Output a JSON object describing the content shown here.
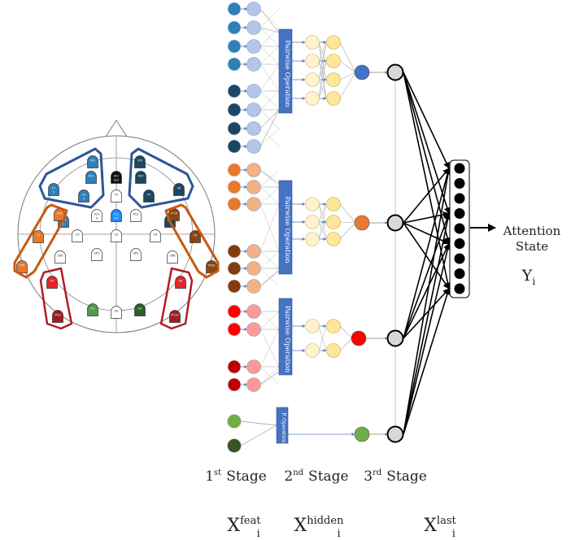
{
  "eeg": {
    "electrodes": [
      {
        "label": "F7",
        "sub": "3",
        "color": "#2f7fb8"
      },
      {
        "label": "F3",
        "sub": "4",
        "color": "#2f7fb8"
      },
      {
        "label": "FC5",
        "sub": "5",
        "color": "#2f7fb8"
      },
      {
        "label": "FP1",
        "sub": "",
        "color": "#2f7fb8"
      },
      {
        "label": "AF3",
        "sub": "",
        "color": "#2f7fb8"
      },
      {
        "label": "FP2",
        "sub": "",
        "color": "#1c4662"
      },
      {
        "label": "AF4",
        "sub": "",
        "color": "#1c4662"
      },
      {
        "label": "F4",
        "sub": "",
        "color": "#1c4662"
      },
      {
        "label": "F8",
        "sub": "",
        "color": "#1c4662"
      },
      {
        "label": "FC6",
        "sub": "",
        "color": "#1c4662"
      },
      {
        "label": "AFz",
        "sub": "Gnd",
        "color": "#111111"
      },
      {
        "label": "Fz",
        "sub": "",
        "color": "#ffffff"
      },
      {
        "label": "FT9",
        "sub": "",
        "color": "#e8782a"
      },
      {
        "label": "T7",
        "sub": "",
        "color": "#e8782a"
      },
      {
        "label": "TP9",
        "sub": "",
        "color": "#e8782a"
      },
      {
        "label": "FT10",
        "sub": "",
        "color": "#8a4512"
      },
      {
        "label": "T8",
        "sub": "",
        "color": "#8a4512"
      },
      {
        "label": "TP10",
        "sub": "",
        "color": "#8a4512"
      },
      {
        "label": "FC1",
        "sub": "9",
        "color": "#ffffff"
      },
      {
        "label": "FCz",
        "sub": "Ref",
        "color": "#1a8cff"
      },
      {
        "label": "FC2",
        "sub": "",
        "color": "#ffffff"
      },
      {
        "label": "C3",
        "sub": "",
        "color": "#ffffff"
      },
      {
        "label": "Cz",
        "sub": "",
        "color": "#ffffff"
      },
      {
        "label": "C4",
        "sub": "",
        "color": "#ffffff"
      },
      {
        "label": "CP5",
        "sub": "",
        "color": "#ffffff"
      },
      {
        "label": "CP1",
        "sub": "",
        "color": "#ffffff"
      },
      {
        "label": "CP2",
        "sub": "",
        "color": "#ffffff"
      },
      {
        "label": "CP6",
        "sub": "",
        "color": "#ffffff"
      },
      {
        "label": "P7",
        "sub": "",
        "color": "#e0262b"
      },
      {
        "label": "PO9",
        "sub": "",
        "color": "#a01d20"
      },
      {
        "label": "P8",
        "sub": "",
        "color": "#e0262b"
      },
      {
        "label": "PO10",
        "sub": "",
        "color": "#a01d20"
      },
      {
        "label": "O1",
        "sub": "",
        "color": "#4e9a4a"
      },
      {
        "label": "Oz",
        "sub": "",
        "color": "#ffffff"
      },
      {
        "label": "O2",
        "sub": "",
        "color": "#2d5e2d"
      }
    ]
  },
  "network": {
    "groups": [
      {
        "op_label": "Pairwise Operation",
        "inputs_top": [
          "#2f7fb8",
          "#2f7fb8",
          "#2f7fb8",
          "#2f7fb8"
        ],
        "inputs_bottom": [
          "#1c4662",
          "#1c4662",
          "#1c4662",
          "#1c4662"
        ],
        "feature_color": "#b3c6e7",
        "output_color": "#4472c4"
      },
      {
        "op_label": "Pairwise Operation",
        "inputs_top": [
          "#e8782a",
          "#e8782a",
          "#e8782a"
        ],
        "inputs_bottom": [
          "#843c0c",
          "#843c0c",
          "#843c0c"
        ],
        "feature_color": "#f4b183",
        "output_color": "#e87a2f"
      },
      {
        "op_label": "Pairwise Operation",
        "inputs_top": [
          "#ff0000",
          "#ff0000"
        ],
        "inputs_bottom": [
          "#c00000",
          "#c00000"
        ],
        "feature_color": "#ff9999",
        "output_color": "#ff0000"
      },
      {
        "op_label": "P. Operation",
        "inputs_top": [
          "#70ad47"
        ],
        "inputs_bottom": [
          "#375623"
        ],
        "feature_color": "",
        "output_color": "#70ad47"
      }
    ],
    "hidden_colors": {
      "first": "#fff2cc",
      "second": "#ffe699"
    },
    "last_node_color": "#d9d9d9",
    "attention_nodes": 9,
    "output_label": {
      "line1": "Attention",
      "line2": "State",
      "symbol": "Y",
      "symbol_sub": "i"
    }
  },
  "stages": [
    {
      "num": "1",
      "sup": "st",
      "word": "Stage"
    },
    {
      "num": "2",
      "sup": "nd",
      "word": "Stage"
    },
    {
      "num": "3",
      "sup": "rd",
      "word": "Stage"
    }
  ],
  "variables": [
    {
      "base": "X",
      "sup": "feat",
      "sub": "i"
    },
    {
      "base": "X",
      "sup": "hidden",
      "sub": "i"
    },
    {
      "base": "X",
      "sup": "last",
      "sub": "i"
    }
  ]
}
